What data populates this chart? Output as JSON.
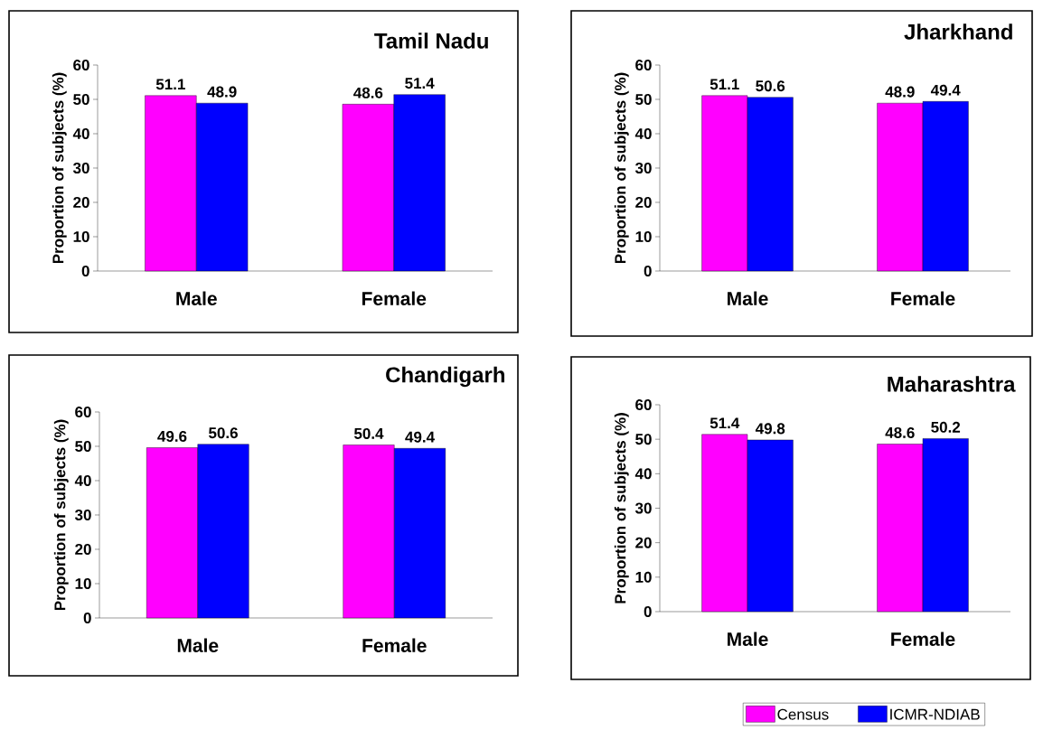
{
  "chart_data": [
    {
      "type": "bar",
      "title": "Tamil Nadu",
      "ylabel": "Proportion of subjects  (%)",
      "categories": [
        "Male",
        "Female"
      ],
      "series": [
        {
          "color": "#ff00ff",
          "values": [
            51.1,
            48.6
          ]
        },
        {
          "color": "#0000ff",
          "values": [
            48.9,
            51.4
          ]
        }
      ],
      "ylim": [
        0,
        60
      ],
      "yticks": [
        0,
        10,
        20,
        30,
        40,
        50,
        60
      ],
      "data_labels": true
    },
    {
      "type": "bar",
      "title": "Jharkhand",
      "ylabel": "Proportion of subjects  (%)",
      "categories": [
        "Male",
        "Female"
      ],
      "series": [
        {
          "color": "#ff00ff",
          "values": [
            51.1,
            48.9
          ]
        },
        {
          "color": "#0000ff",
          "values": [
            50.6,
            49.4
          ]
        }
      ],
      "ylim": [
        0,
        60
      ],
      "yticks": [
        0,
        10,
        20,
        30,
        40,
        50,
        60
      ],
      "data_labels": true
    },
    {
      "type": "bar",
      "title": "Chandigarh",
      "ylabel": "Proportion of subjects  (%)",
      "categories": [
        "Male",
        "Female"
      ],
      "series": [
        {
          "color": "#ff00ff",
          "values": [
            49.6,
            50.4
          ]
        },
        {
          "color": "#0000ff",
          "values": [
            50.6,
            49.4
          ]
        }
      ],
      "ylim": [
        0,
        60
      ],
      "yticks": [
        0,
        10,
        20,
        30,
        40,
        50,
        60
      ],
      "data_labels": true
    },
    {
      "type": "bar",
      "title": "Maharashtra",
      "ylabel": "Proportion of subjects  (%)",
      "categories": [
        "Male",
        "Female"
      ],
      "series": [
        {
          "name": "Census",
          "color": "#ff00ff",
          "values": [
            51.4,
            48.6
          ]
        },
        {
          "name": "ICMR-NDIAB",
          "color": "#0000ff",
          "values": [
            49.8,
            50.2
          ]
        }
      ],
      "ylim": [
        0,
        60
      ],
      "yticks": [
        0,
        10,
        20,
        30,
        40,
        50,
        60
      ],
      "data_labels": true,
      "legend": "bottom right"
    }
  ]
}
